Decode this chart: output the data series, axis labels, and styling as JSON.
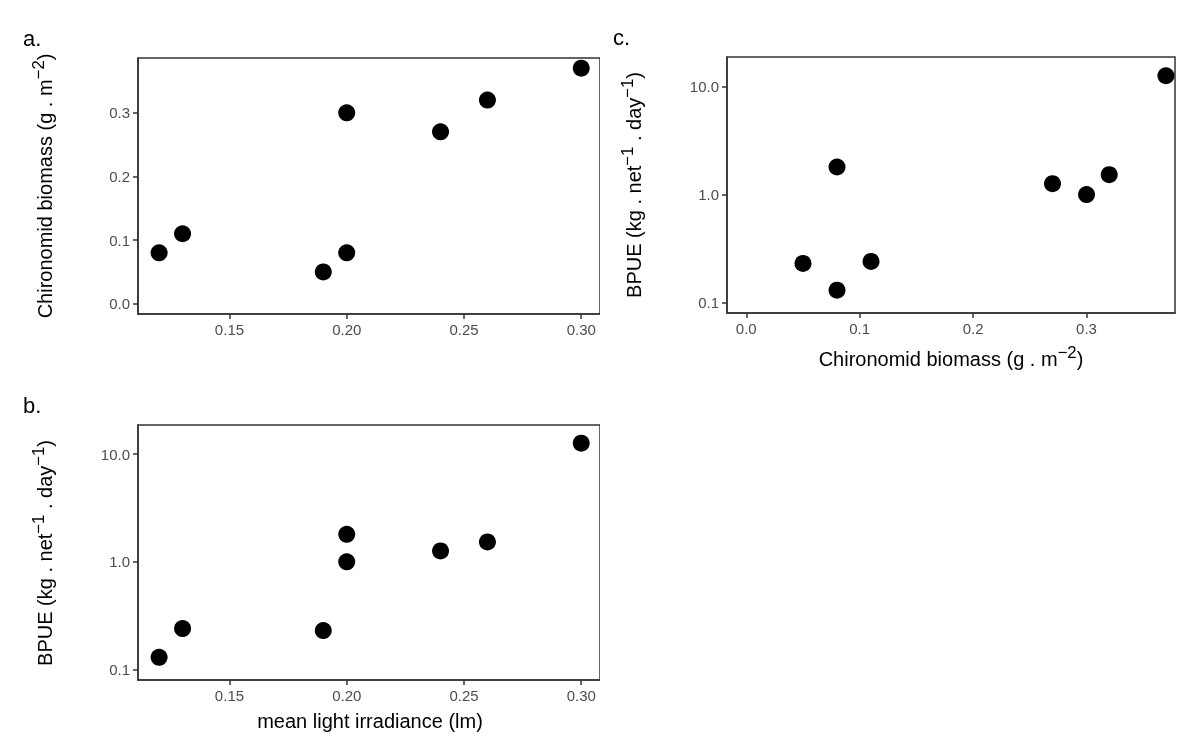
{
  "chart_data": [
    {
      "type": "scatter",
      "title": "a.",
      "ylabel": "Chironomid biomass (g . m$^{−2}$)",
      "x": [
        0.12,
        0.13,
        0.19,
        0.2,
        0.2,
        0.24,
        0.26,
        0.3
      ],
      "series": [
        {
          "color": "#000000",
          "values": [
            0.08,
            0.11,
            0.05,
            0.08,
            0.3,
            0.27,
            0.32,
            0.37
          ]
        }
      ],
      "xlim": [
        0.111,
        0.308
      ],
      "xticks": [
        0.15,
        {
          "value": 0.2,
          "label": "0.20"
        },
        0.25,
        {
          "value": 0.3,
          "label": "0.30"
        }
      ],
      "ylim": [
        -0.016,
        0.386
      ],
      "yticks": [
        {
          "value": 0,
          "label": "0.0"
        },
        0.1,
        0.2,
        0.3
      ],
      "marker": "circle"
    },
    {
      "type": "scatter",
      "title": "b.",
      "xlabel": "mean light irradiance (lm)",
      "ylabel": "BPUE (kg . net$^{−1}$ . day$^{−1}$)",
      "x": [
        0.12,
        0.13,
        0.19,
        0.2,
        0.2,
        0.24,
        0.26,
        0.3
      ],
      "series": [
        {
          "color": "#000000",
          "values": [
            0.13,
            0.24,
            0.23,
            1.0,
            1.8,
            1.26,
            1.53,
            12.6
          ]
        }
      ],
      "xlim": [
        0.111,
        0.308
      ],
      "xticks": [
        0.15,
        {
          "value": 0.2,
          "label": "0.20"
        },
        0.25,
        {
          "value": 0.3,
          "label": "0.30"
        }
      ],
      "ylim": [
        0.08,
        18.6
      ],
      "yticks": [
        0.1,
        {
          "value": 1,
          "label": "1.0"
        },
        {
          "value": 10,
          "label": "10.0"
        }
      ],
      "log": true,
      "marker": "circle"
    },
    {
      "type": "scatter",
      "title": "c.",
      "xlabel": "Chironomid biomass (g . m$^{−2}$)",
      "ylabel": "BPUE (kg . net$^{−1}$ . day$^{−1}$)",
      "x": [
        0.05,
        0.08,
        0.08,
        0.11,
        0.27,
        0.3,
        0.32,
        0.37
      ],
      "series": [
        {
          "color": "#000000",
          "values": [
            0.23,
            0.13,
            1.8,
            0.24,
            1.26,
            1.0,
            1.53,
            12.6
          ]
        }
      ],
      "xlim": [
        -0.017,
        0.378
      ],
      "xticks": [
        {
          "value": 0,
          "label": "0.0"
        },
        0.1,
        0.2,
        0.3
      ],
      "ylim": [
        0.08,
        18.8
      ],
      "yticks": [
        0.1,
        {
          "value": 1,
          "label": "1.0"
        },
        {
          "value": 10,
          "label": "10.0"
        }
      ],
      "log": true,
      "marker": "circle"
    }
  ]
}
